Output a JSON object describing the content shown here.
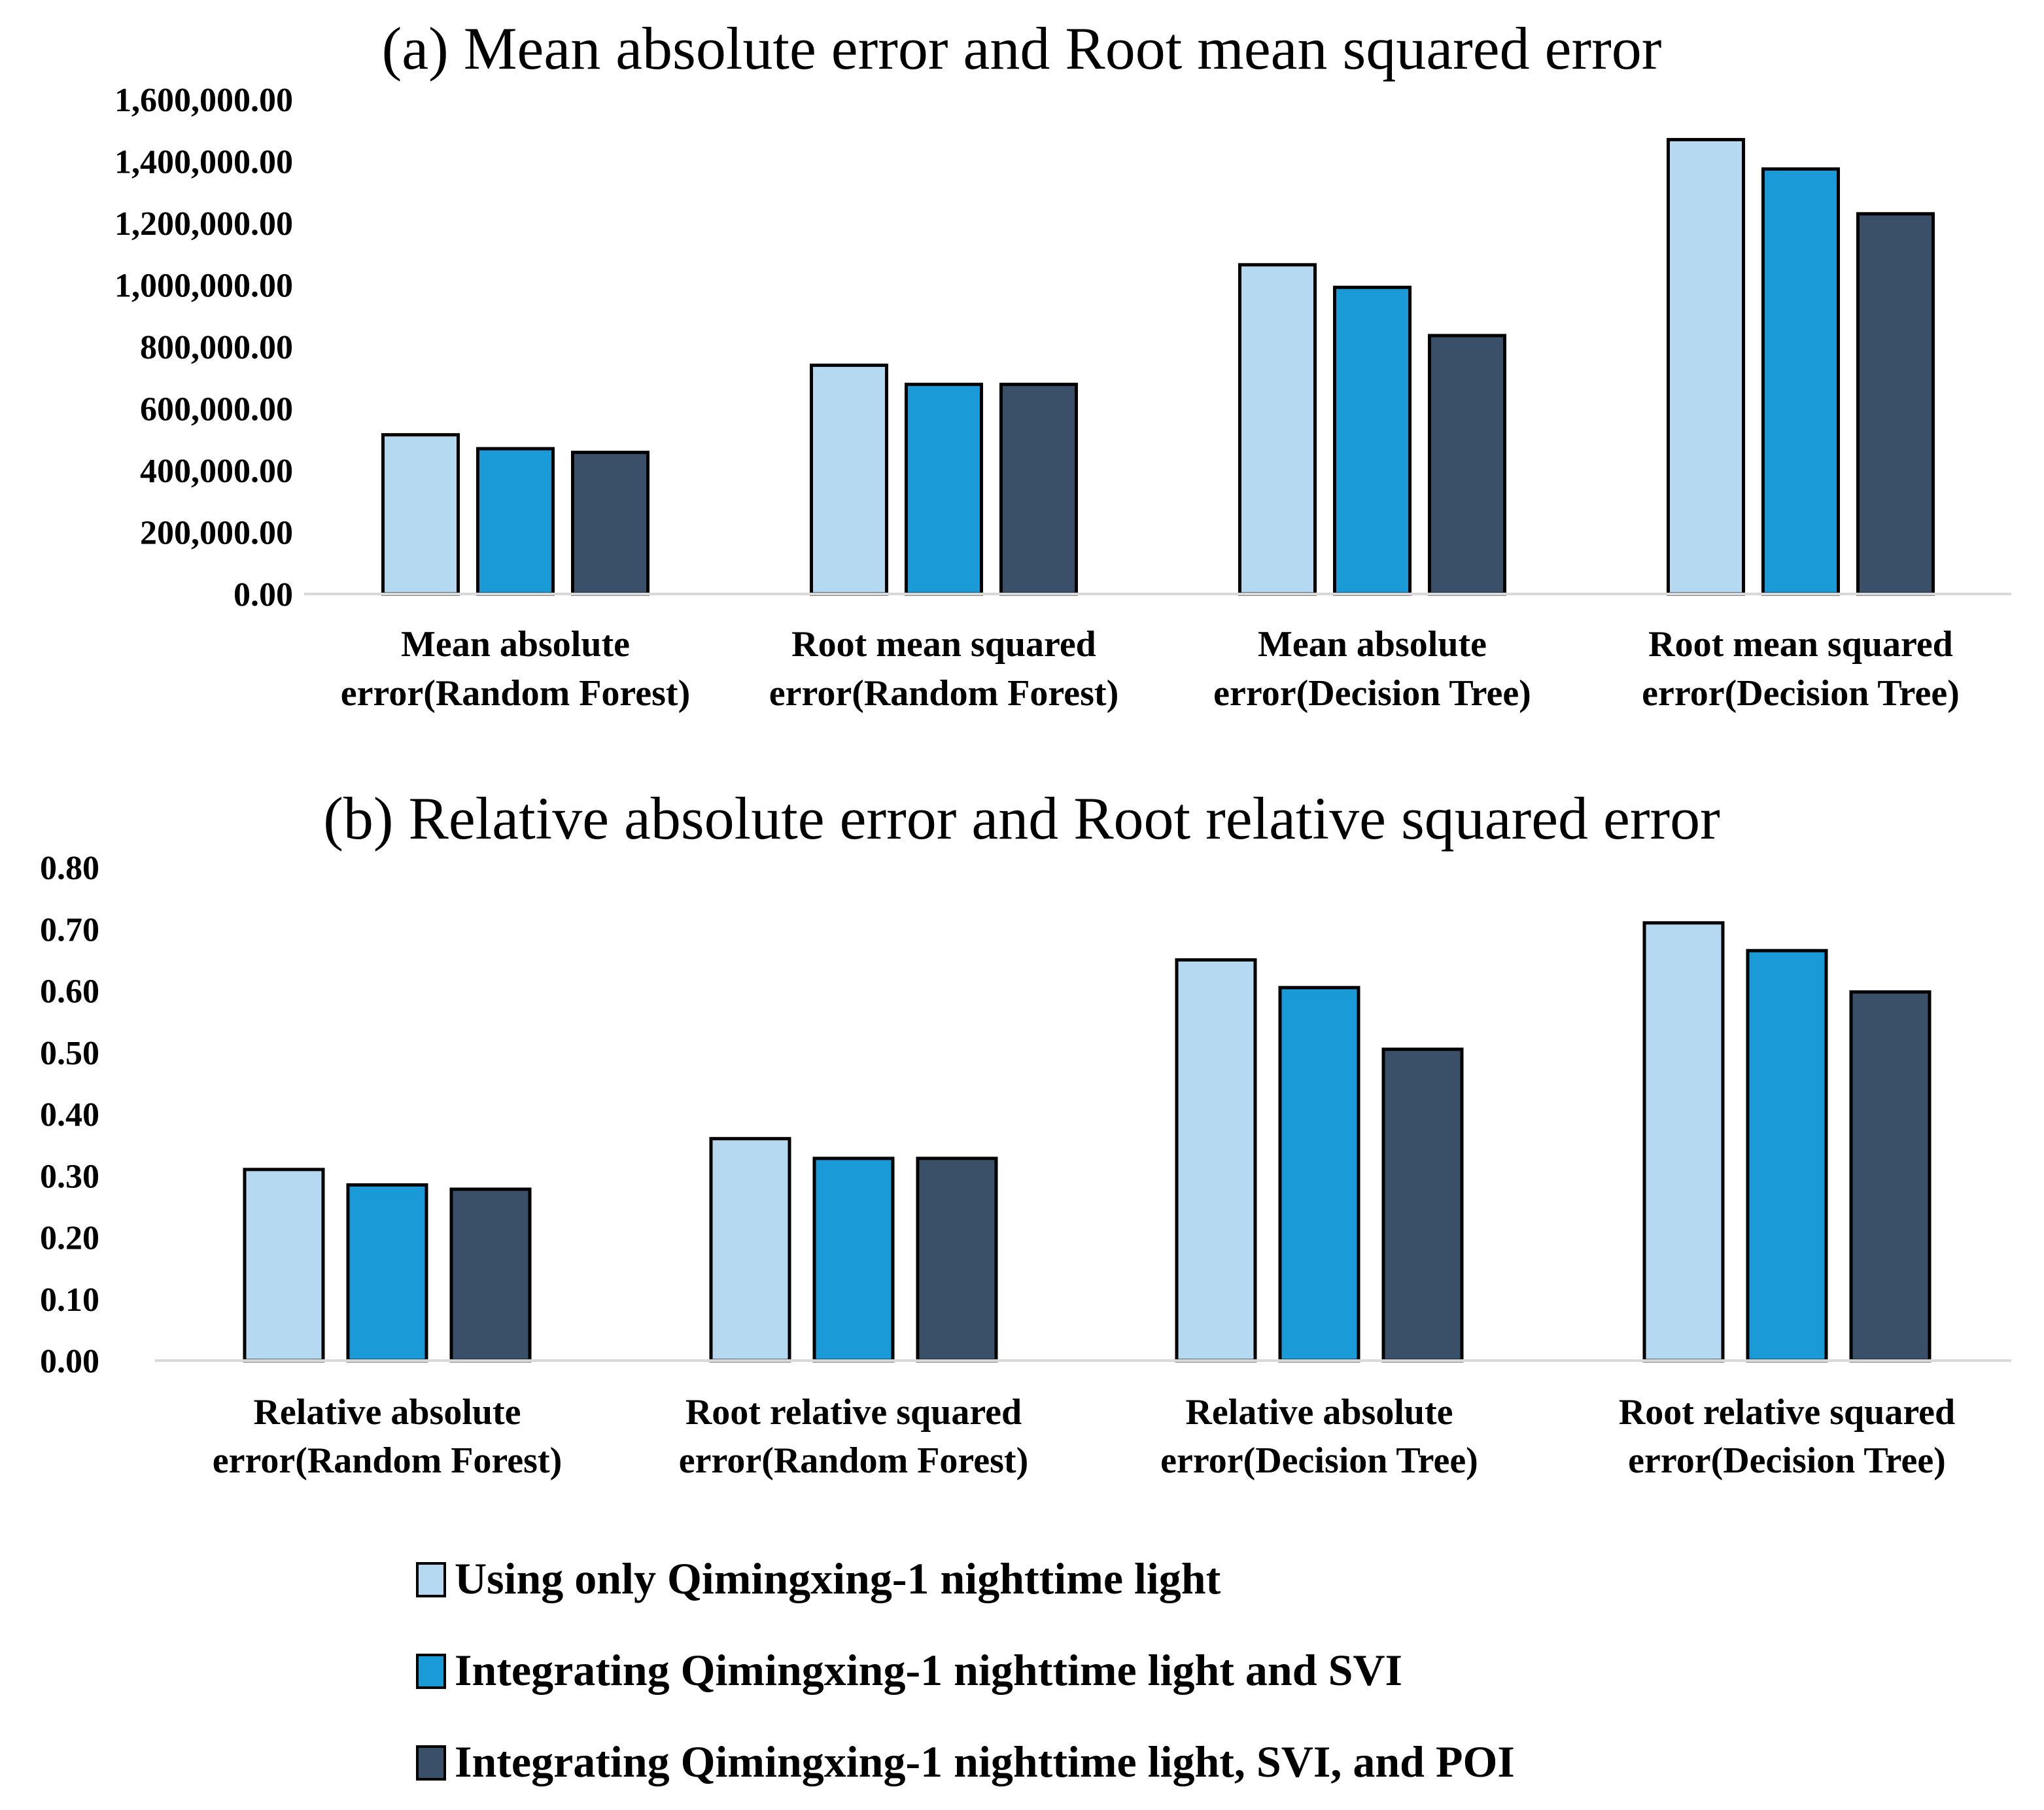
{
  "colors": {
    "light": "#b5d9f0",
    "mid": "#1a9bd7",
    "dark": "#3a5068"
  },
  "legend": {
    "placement": "bottom",
    "items": [
      {
        "label": "Using only Qimingxing-1 nighttime light",
        "color": "#b5d9f0"
      },
      {
        "label": "Integrating Qimingxing-1 nighttime light and SVI",
        "color": "#1a9bd7"
      },
      {
        "label": "Integrating Qimingxing-1 nighttime light, SVI, and POI",
        "color": "#3a5068"
      }
    ]
  },
  "chart_data": [
    {
      "type": "bar",
      "title": "(a) Mean absolute error and Root mean squared error",
      "categories": [
        [
          "Mean absolute",
          "error(Random Forest)"
        ],
        [
          "Root mean squared",
          "error(Random Forest)"
        ],
        [
          "Mean absolute",
          "error(Decision Tree)"
        ],
        [
          "Root mean squared",
          "error(Decision Tree)"
        ]
      ],
      "series": [
        {
          "name": "Using only Qimingxing-1 nighttime light",
          "color": "#b5d9f0",
          "values": [
            515000,
            740000,
            1065000,
            1470000
          ]
        },
        {
          "name": "Integrating Qimingxing-1 nighttime light and SVI",
          "color": "#1a9bd7",
          "values": [
            470000,
            678000,
            992000,
            1375000
          ]
        },
        {
          "name": "Integrating Qimingxing-1 nighttime light, SVI, and POI",
          "color": "#3a5068",
          "values": [
            458000,
            678000,
            836000,
            1230000
          ]
        }
      ],
      "yticks": [
        "0.00",
        "200,000.00",
        "400,000.00",
        "600,000.00",
        "800,000.00",
        "1,000,000.00",
        "1,200,000.00",
        "1,400,000.00",
        "1,600,000.00"
      ],
      "ylim": [
        0,
        1600000
      ],
      "grid": false
    },
    {
      "type": "bar",
      "title": "(b) Relative absolute error and Root relative squared error",
      "categories": [
        [
          "Relative absolute",
          "error(Random Forest)"
        ],
        [
          "Root relative squared",
          "error(Random Forest)"
        ],
        [
          "Relative absolute",
          "error(Decision Tree)"
        ],
        [
          "Root relative squared",
          "error(Decision Tree)"
        ]
      ],
      "series": [
        {
          "name": "Using only Qimingxing-1 nighttime light",
          "color": "#b5d9f0",
          "values": [
            0.31,
            0.36,
            0.65,
            0.71
          ]
        },
        {
          "name": "Integrating Qimingxing-1 nighttime light and SVI",
          "color": "#1a9bd7",
          "values": [
            0.285,
            0.328,
            0.605,
            0.665
          ]
        },
        {
          "name": "Integrating Qimingxing-1 nighttime light, SVI, and POI",
          "color": "#3a5068",
          "values": [
            0.278,
            0.328,
            0.505,
            0.598
          ]
        }
      ],
      "yticks": [
        "0.00",
        "0.10",
        "0.20",
        "0.30",
        "0.40",
        "0.50",
        "0.60",
        "0.70",
        "0.80"
      ],
      "ylim": [
        0,
        0.8
      ],
      "grid": false
    }
  ]
}
